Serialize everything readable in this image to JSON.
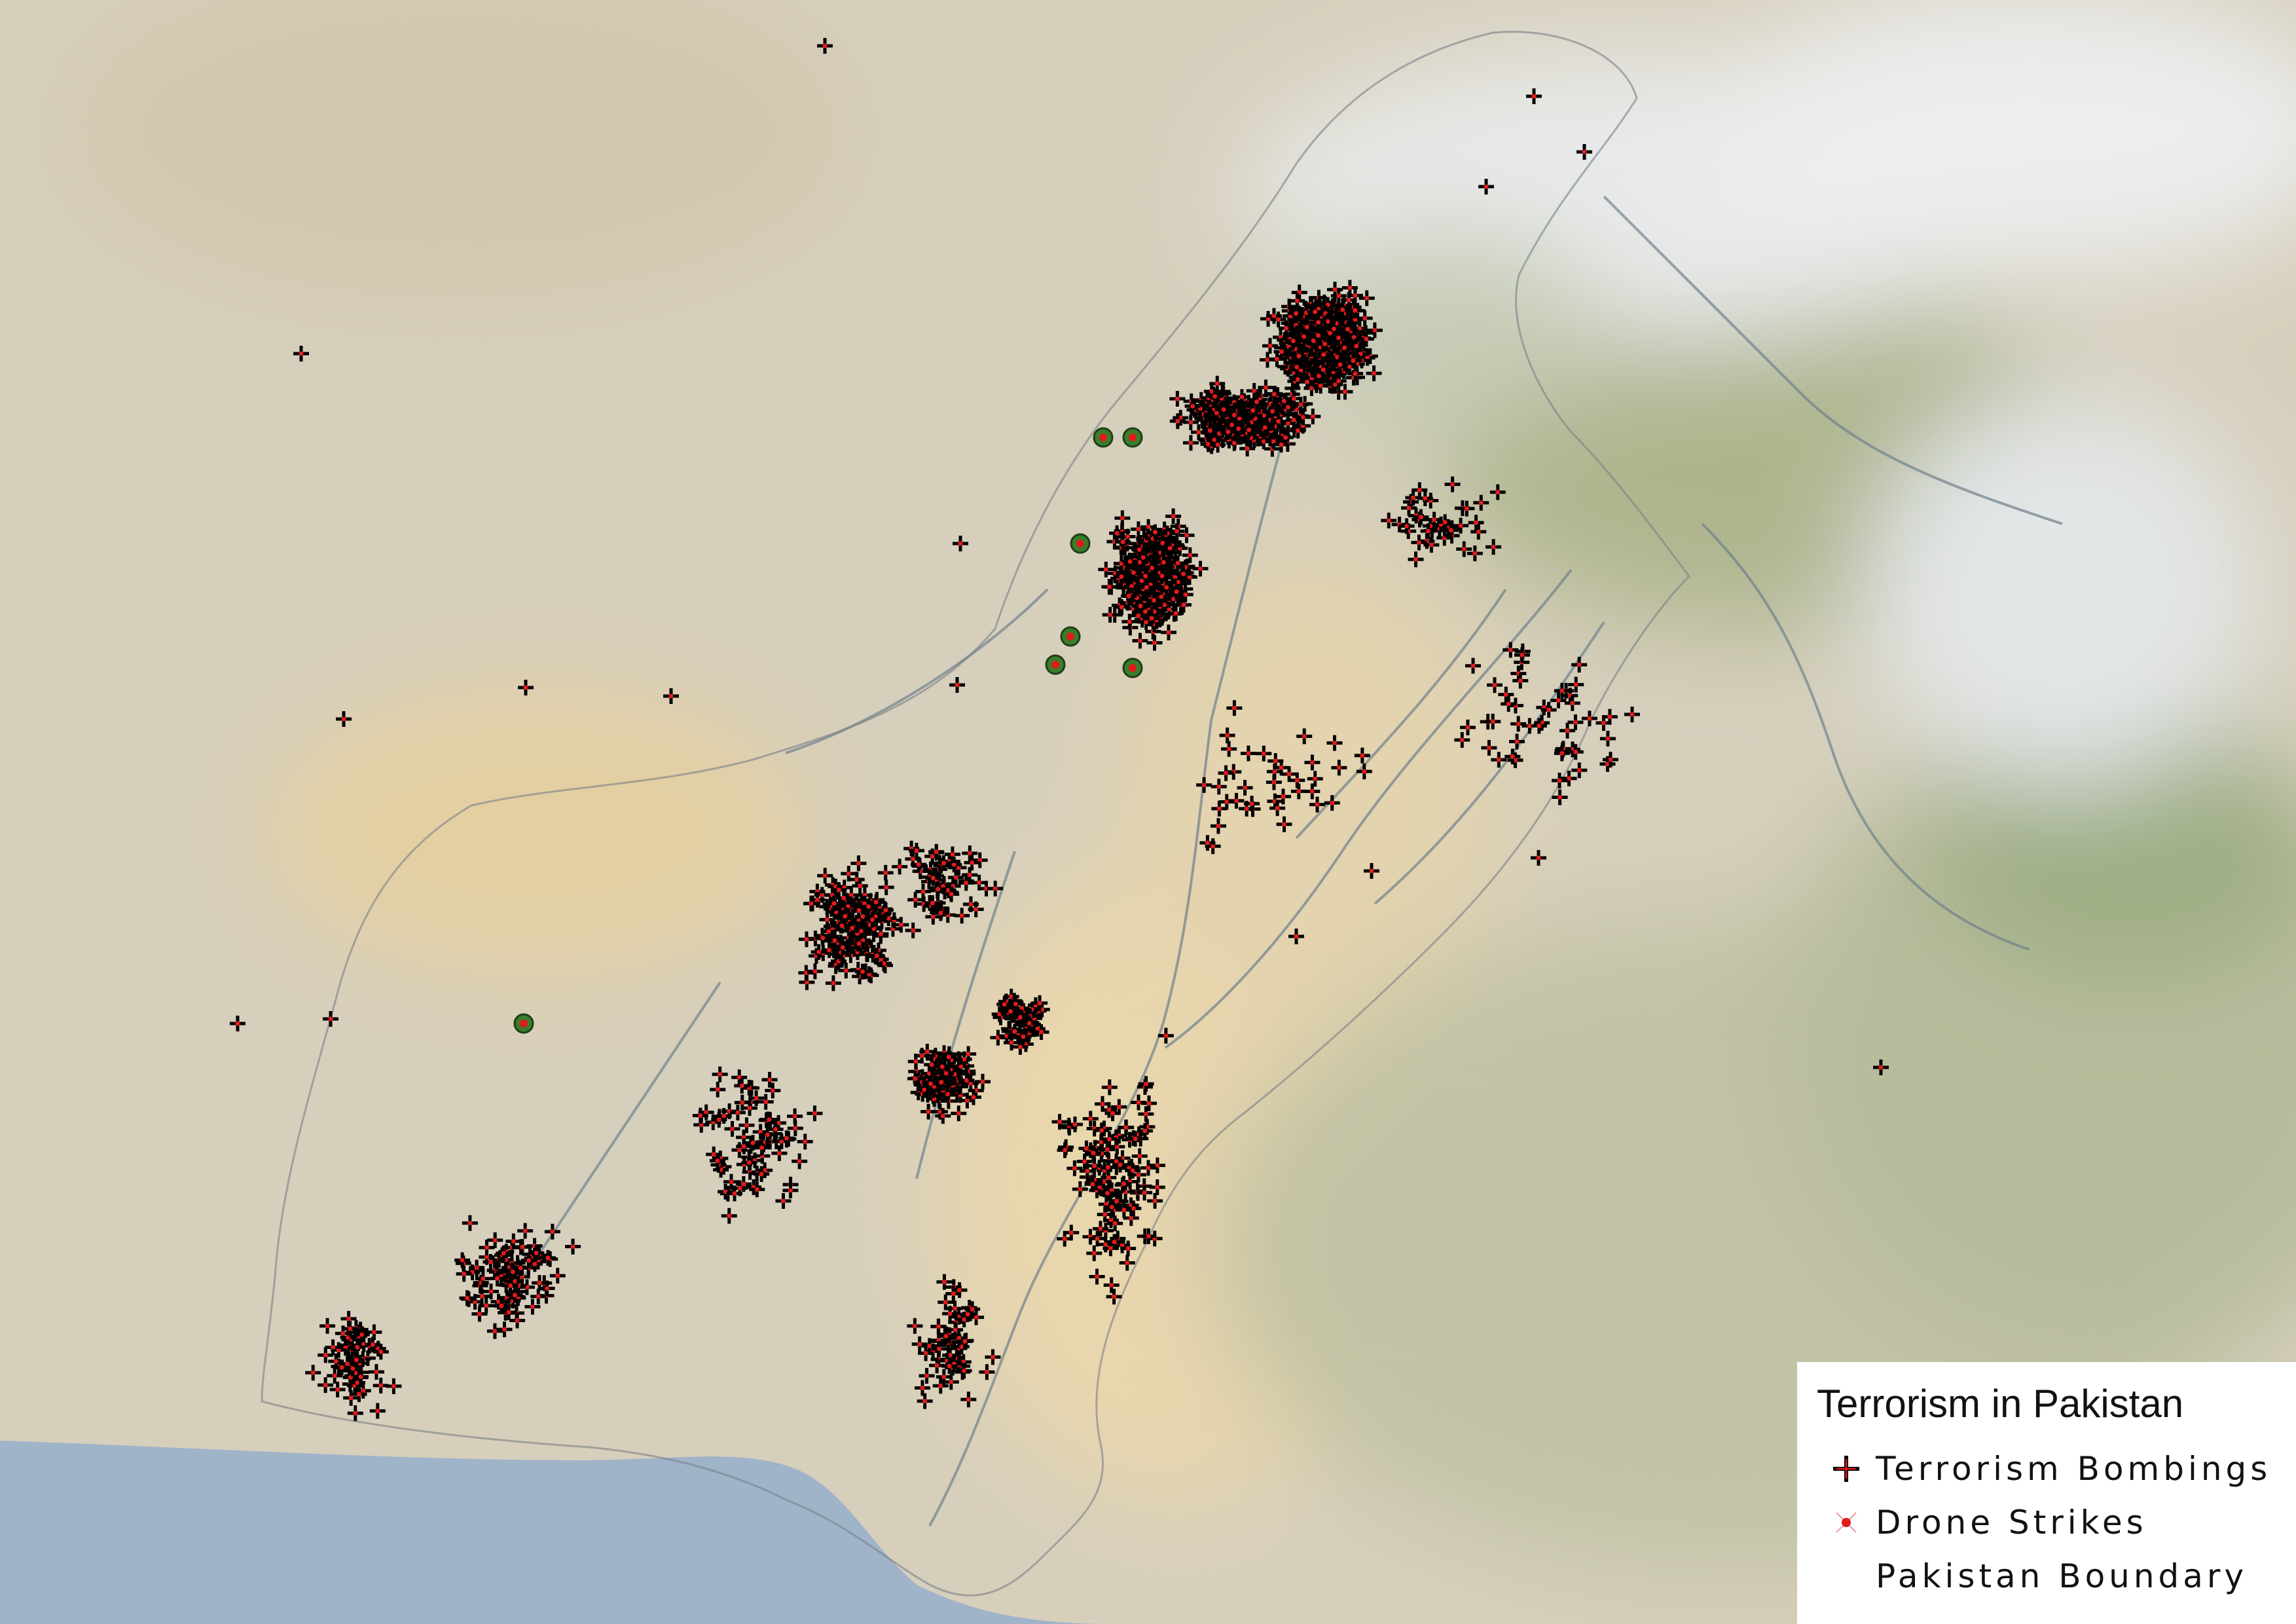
{
  "legend": {
    "title": "Terrorism in Pakistan",
    "items": [
      {
        "label": "Terrorism Bombings",
        "symbol": "cross-icon"
      },
      {
        "label": "Drone Strikes",
        "symbol": "x-dot-icon"
      },
      {
        "label": "Pakistan Boundary",
        "symbol": "boundary-line"
      }
    ]
  },
  "colors": {
    "land": "#d8d0bb",
    "desert": "#e6cfa0",
    "mountains": "#e9ecee",
    "vegetation": "#a9b38d",
    "sea": "#9cb1c8",
    "river": "#6e7f8c",
    "marker_stroke": "#000000",
    "marker_fill": "#e31a1c",
    "drone_ring": "#3a7d2a"
  }
}
